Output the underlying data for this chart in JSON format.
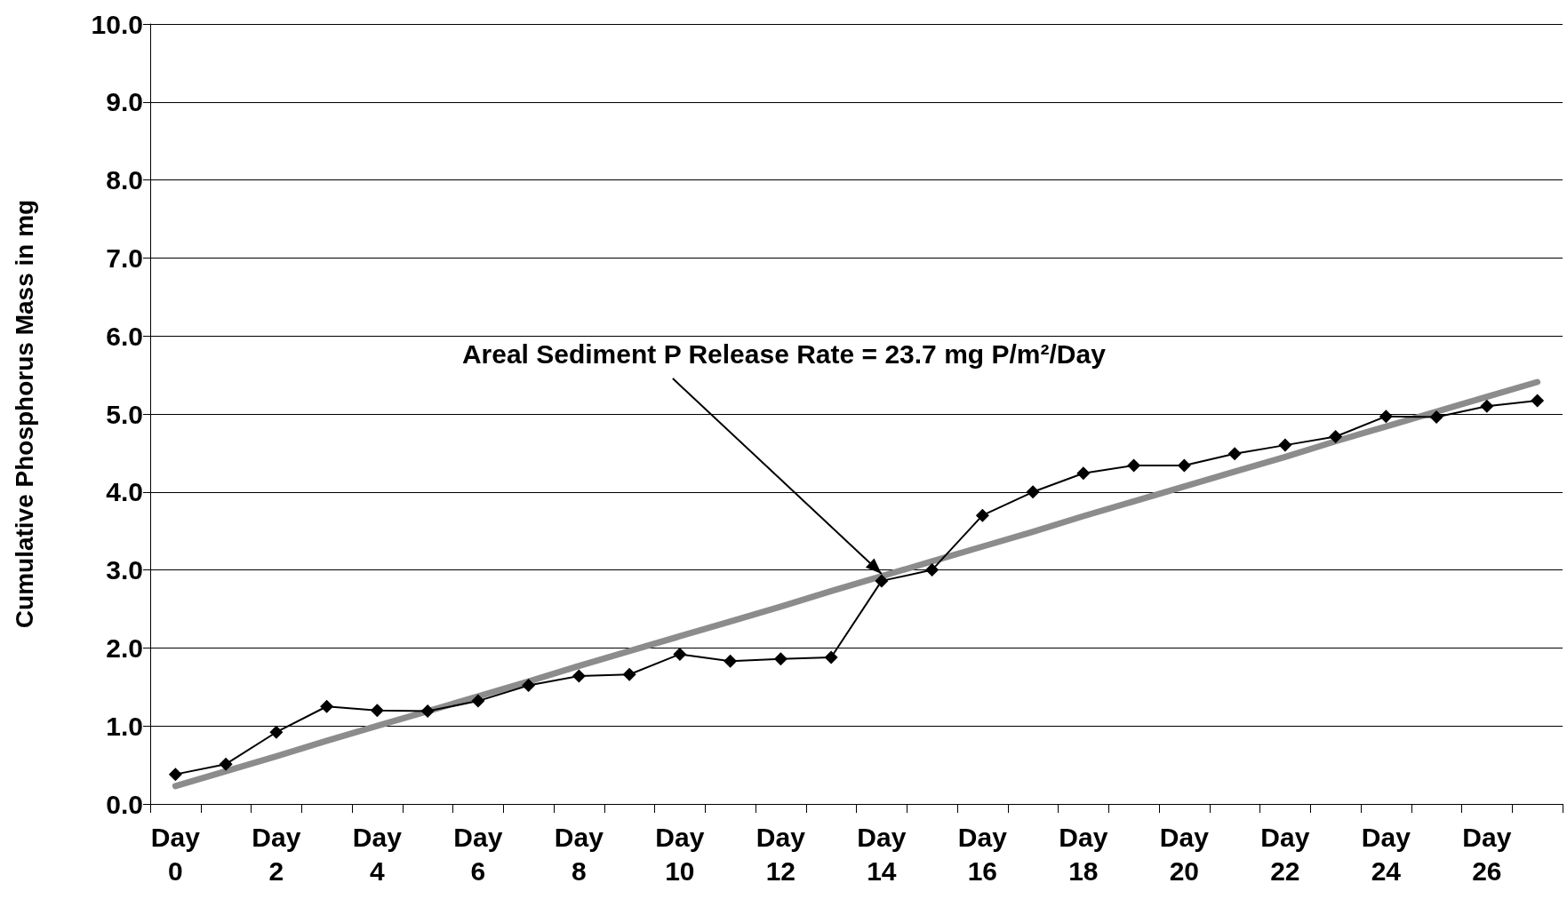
{
  "chart_data": {
    "type": "line",
    "ylabel": "Cumulative Phosphorus Mass in mg",
    "categories": [
      "Day 0",
      null,
      "Day 2",
      null,
      "Day 4",
      null,
      "Day 6",
      null,
      "Day 8",
      null,
      "Day 10",
      null,
      "Day 12",
      null,
      "Day 14",
      null,
      "Day 16",
      null,
      "Day 18",
      null,
      "Day 20",
      null,
      "Day 22",
      null,
      "Day 24",
      null,
      "Day 26",
      null
    ],
    "series": [
      {
        "color": "#000000",
        "marker": "diamond",
        "values": [
          0.38,
          0.51,
          0.92,
          1.25,
          1.2,
          1.19,
          1.32,
          1.52,
          1.64,
          1.66,
          1.92,
          1.83,
          1.86,
          1.88,
          2.86,
          3.0,
          3.7,
          4.0,
          4.24,
          4.34,
          4.34,
          4.49,
          4.6,
          4.71,
          4.97,
          4.96,
          5.1,
          5.17
        ]
      },
      {
        "color": "#8c8c8c",
        "marker": "none",
        "values": [
          0.23,
          0.42,
          0.61,
          0.81,
          1.0,
          1.19,
          1.38,
          1.57,
          1.77,
          1.96,
          2.15,
          2.34,
          2.53,
          2.73,
          2.92,
          3.11,
          3.3,
          3.49,
          3.69,
          3.88,
          4.07,
          4.26,
          4.45,
          4.65,
          4.84,
          5.03,
          5.22,
          5.41
        ]
      }
    ],
    "ylim": [
      0,
      10
    ],
    "yticks": [
      {
        "value": 0,
        "label": "0.0"
      },
      {
        "value": 1,
        "label": "1.0"
      },
      {
        "value": 2,
        "label": "2.0"
      },
      {
        "value": 3,
        "label": "3.0"
      },
      {
        "value": 4,
        "label": "4.0"
      },
      {
        "value": 5,
        "label": "5.0"
      },
      {
        "value": 6,
        "label": "6.0"
      },
      {
        "value": 7,
        "label": "7.0"
      },
      {
        "value": 8,
        "label": "8.0"
      },
      {
        "value": 9,
        "label": "9.0"
      },
      {
        "value": 10,
        "label": "10.0"
      }
    ],
    "grid": "y",
    "line_style": "solid",
    "annotations": [
      {
        "text": "Areal Sediment P Release Rate = 23.7 mg P/m²/Day",
        "x": "Day 14",
        "y": 2.95
      }
    ]
  }
}
